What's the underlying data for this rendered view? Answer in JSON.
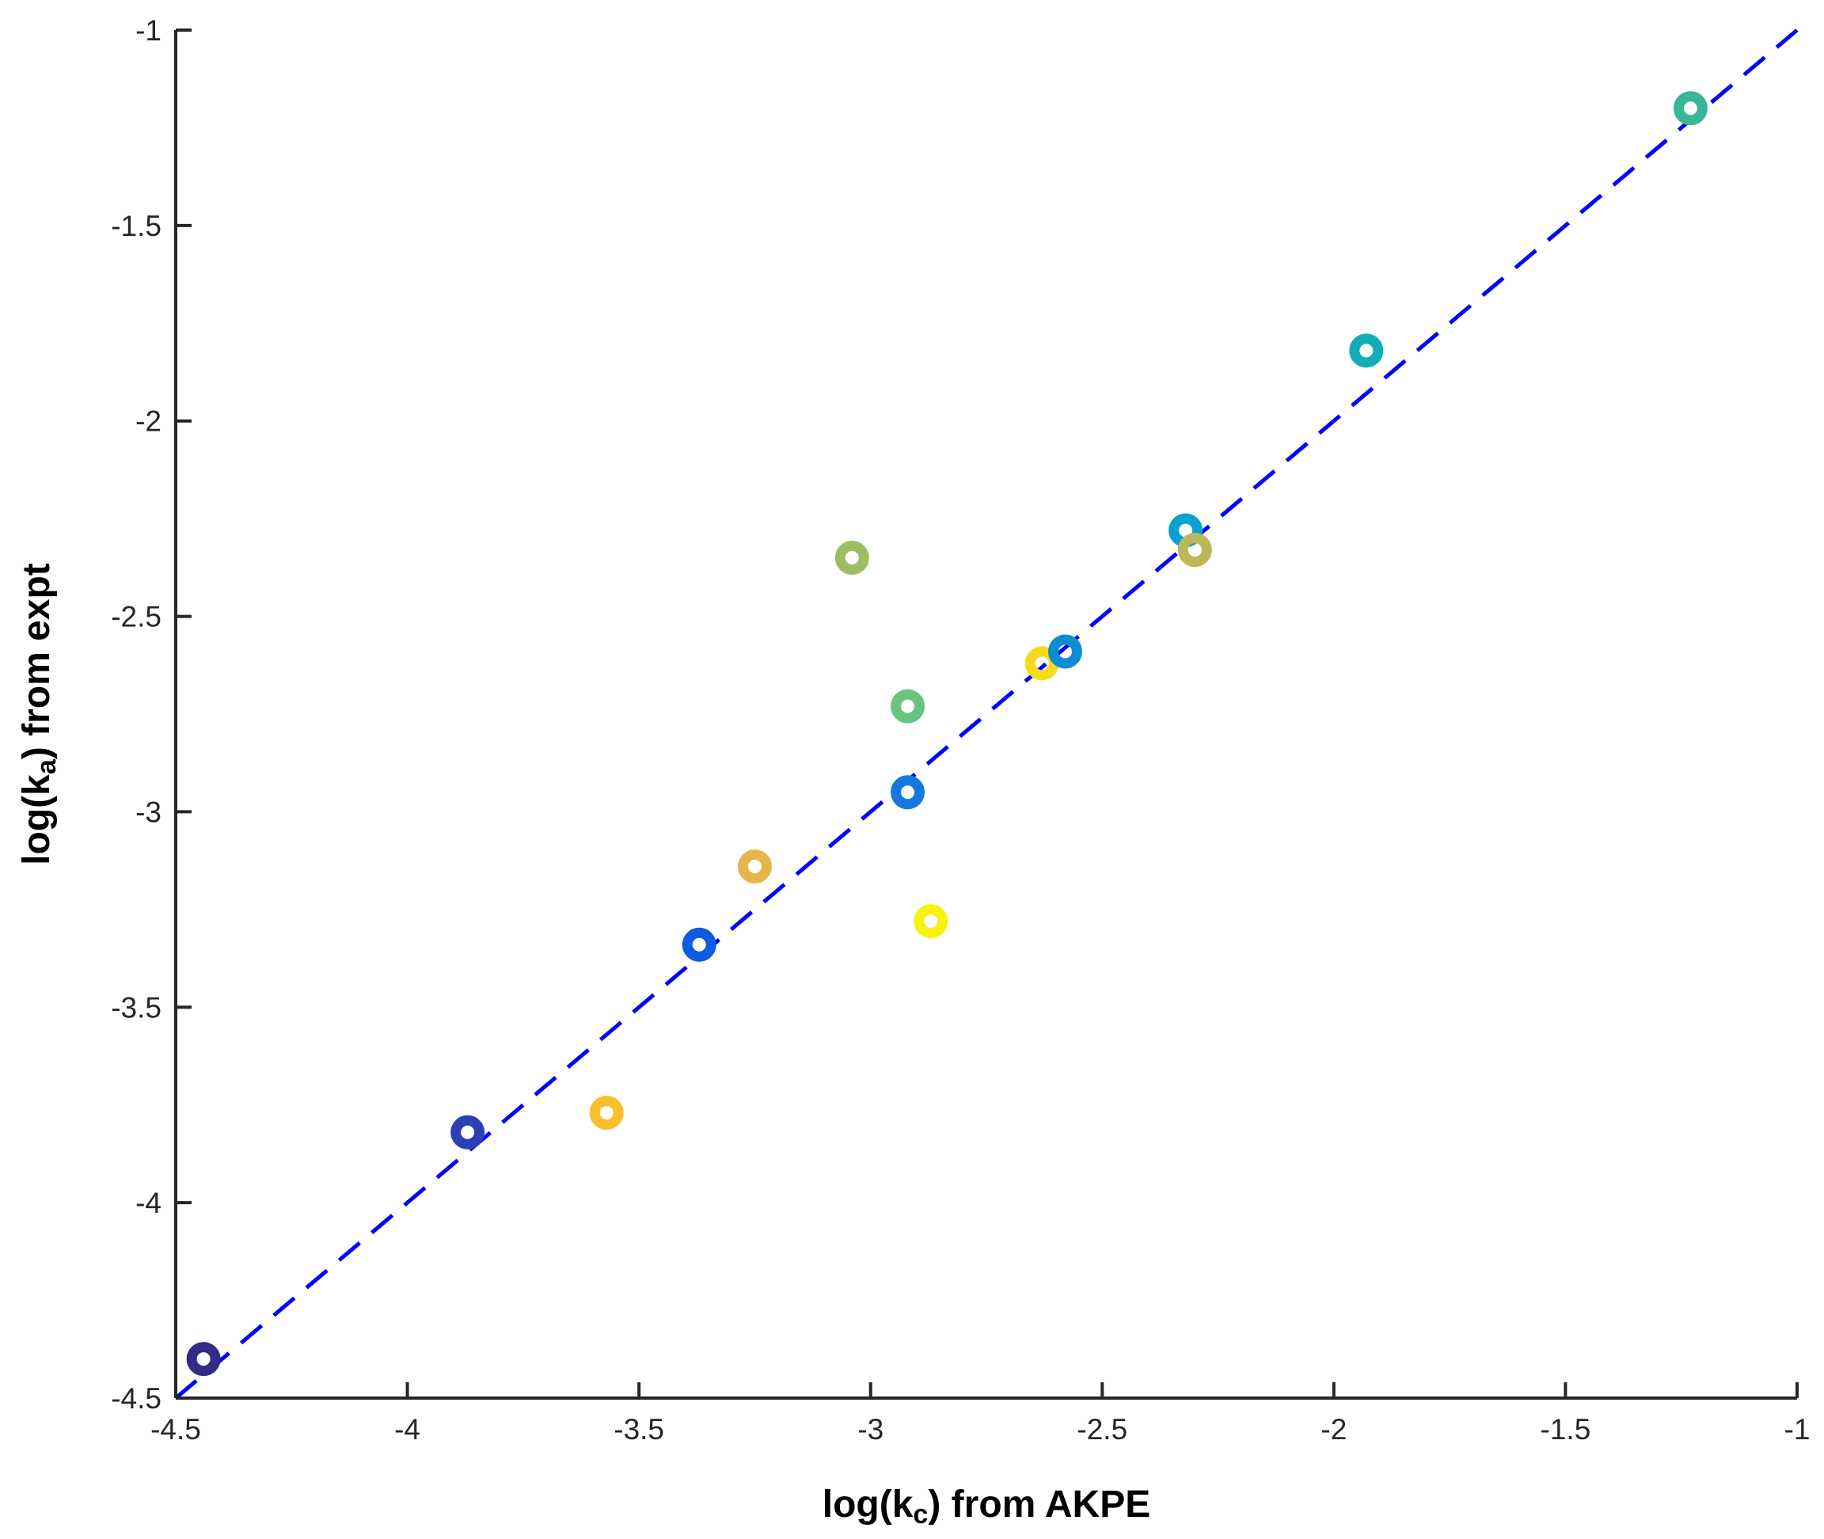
{
  "chart_data": {
    "type": "scatter",
    "xlabel": "log(k",
    "xlabel_sub": "c",
    "xlabel_tail": ") from AKPE",
    "ylabel": "log(k",
    "ylabel_sub": "a",
    "ylabel_tail": ") from expt",
    "xlim": [
      -4.5,
      -1
    ],
    "ylim": [
      -4.5,
      -1
    ],
    "xticks": [
      -4.5,
      -4,
      -3.5,
      -3,
      -2.5,
      -2,
      -1.5,
      -1
    ],
    "yticks": [
      -4.5,
      -4,
      -3.5,
      -3,
      -2.5,
      -2,
      -1.5,
      -1
    ],
    "xtick_labels": [
      "-4.5",
      "-4",
      "-3.5",
      "-3",
      "-2.5",
      "-2",
      "-1.5",
      "-1"
    ],
    "ytick_labels": [
      "-4.5",
      "-4",
      "-3.5",
      "-3",
      "-2.5",
      "-2",
      "-1.5",
      "-1"
    ],
    "grid": false,
    "reference_line": {
      "x": [
        -4.5,
        -1
      ],
      "y": [
        -4.5,
        -1
      ],
      "style": "dashed",
      "color": "#0000ff"
    },
    "points": [
      {
        "x": -4.44,
        "y": -4.4,
        "color": "#352a87"
      },
      {
        "x": -3.87,
        "y": -3.82,
        "color": "#2c3fb5"
      },
      {
        "x": -3.57,
        "y": -3.77,
        "color": "#fbbe2c"
      },
      {
        "x": -3.37,
        "y": -3.34,
        "color": "#0f5ce0"
      },
      {
        "x": -3.25,
        "y": -3.14,
        "color": "#e3b74c"
      },
      {
        "x": -3.04,
        "y": -2.35,
        "color": "#9cbd62"
      },
      {
        "x": -2.92,
        "y": -2.73,
        "color": "#6ac381"
      },
      {
        "x": -2.92,
        "y": -2.95,
        "color": "#1478df"
      },
      {
        "x": -2.87,
        "y": -3.28,
        "color": "#f9f20e"
      },
      {
        "x": -2.63,
        "y": -2.62,
        "color": "#f5db1c"
      },
      {
        "x": -2.58,
        "y": -2.59,
        "color": "#0d8ed3"
      },
      {
        "x": -2.32,
        "y": -2.28,
        "color": "#07a2cf"
      },
      {
        "x": -2.3,
        "y": -2.33,
        "color": "#bcb85a"
      },
      {
        "x": -1.93,
        "y": -1.82,
        "color": "#13adb6"
      },
      {
        "x": -1.23,
        "y": -1.2,
        "color": "#37b795"
      }
    ]
  }
}
